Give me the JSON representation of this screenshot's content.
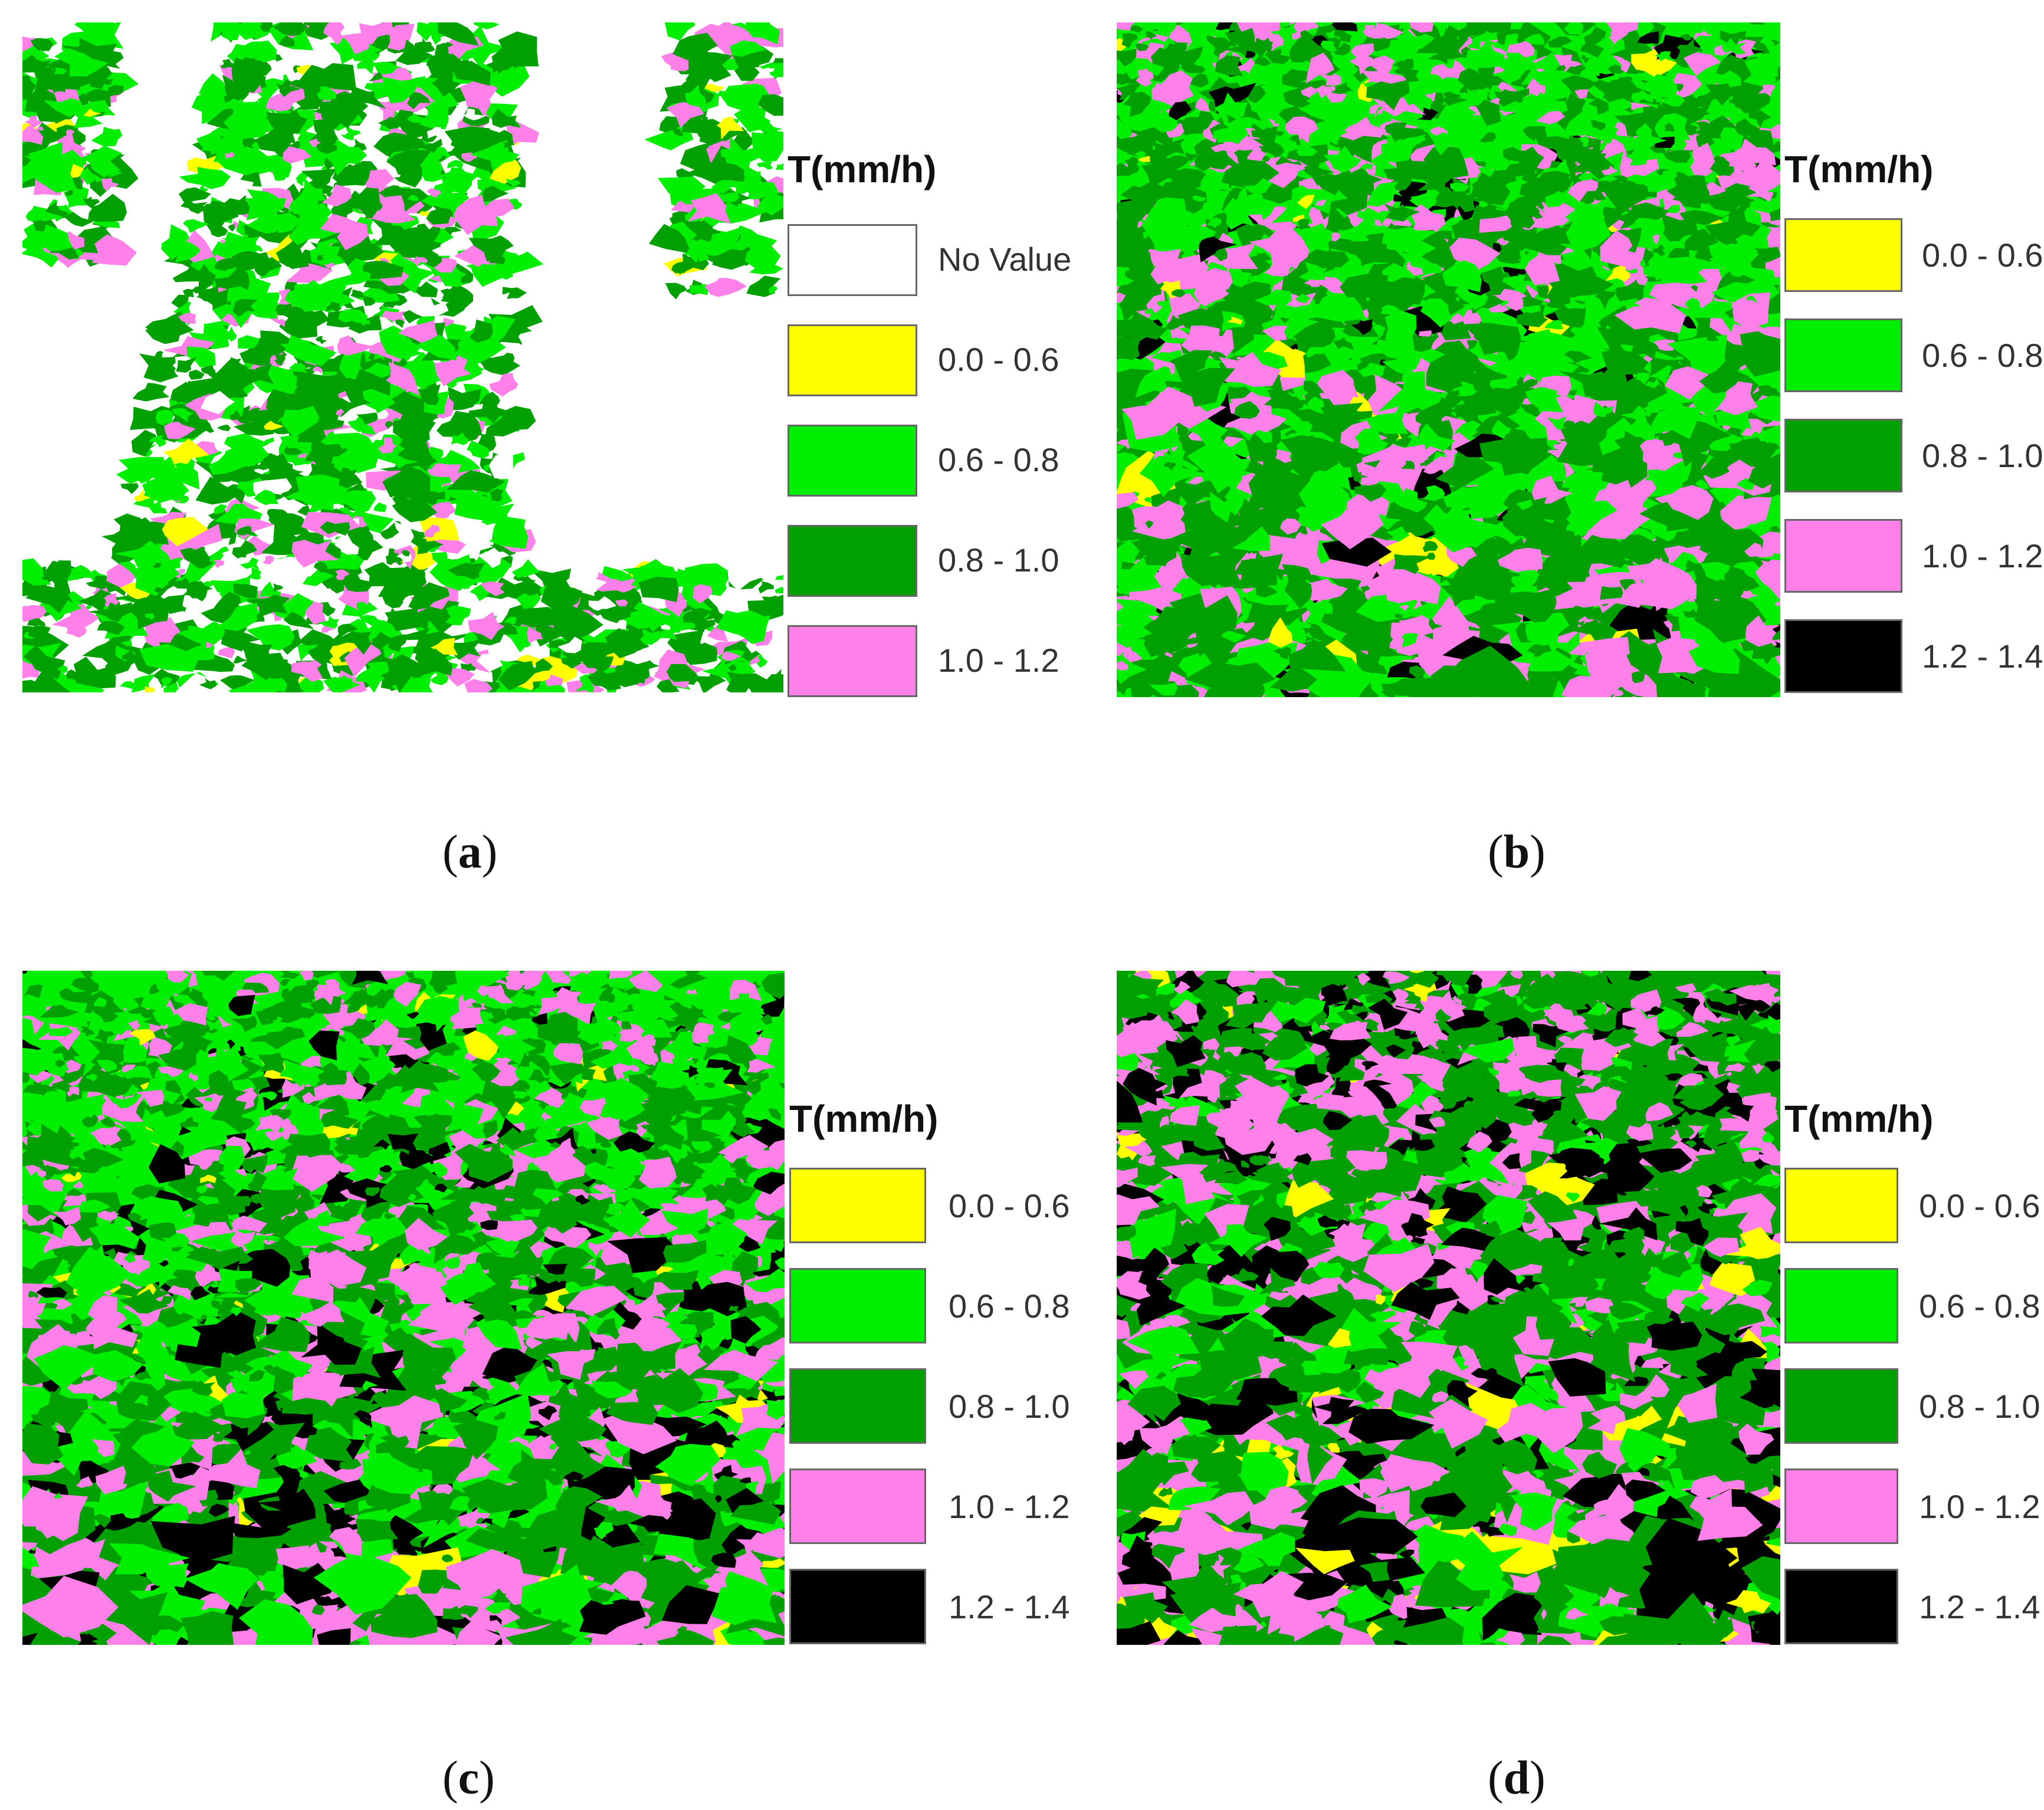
{
  "figure": {
    "legend_title": "T(mm/h)",
    "class_colors": {
      "no_value": "#ffffff",
      "0.0 - 0.6": "#ffff00",
      "0.6 - 0.8": "#00ee00",
      "0.8 - 1.0": "#00a000",
      "1.0 - 1.2": "#ff80e8",
      "1.2 - 1.4": "#000000"
    },
    "panels": [
      {
        "id": "a",
        "caption_letter": "a",
        "legend": [
          {
            "label": "No Value",
            "color": "#ffffff"
          },
          {
            "label": "0.0 - 0.6",
            "color": "#ffff00"
          },
          {
            "label": "0.6 - 0.8",
            "color": "#00ee00"
          },
          {
            "label": "0.8 - 1.0",
            "color": "#00a000"
          },
          {
            "label": "1.0 - 1.2",
            "color": "#ff80e8"
          }
        ]
      },
      {
        "id": "b",
        "caption_letter": "b",
        "legend": [
          {
            "label": "0.0 - 0.6",
            "color": "#ffff00"
          },
          {
            "label": "0.6 - 0.8",
            "color": "#00ee00"
          },
          {
            "label": "0.8 - 1.0",
            "color": "#00a000"
          },
          {
            "label": "1.0 - 1.2",
            "color": "#ff80e8"
          },
          {
            "label": "1.2 - 1.4",
            "color": "#000000"
          }
        ]
      },
      {
        "id": "c",
        "caption_letter": "c",
        "legend": [
          {
            "label": "0.0 - 0.6",
            "color": "#ffff00"
          },
          {
            "label": "0.6 - 0.8",
            "color": "#00ee00"
          },
          {
            "label": "0.8 - 1.0",
            "color": "#00a000"
          },
          {
            "label": "1.0 - 1.2",
            "color": "#ff80e8"
          },
          {
            "label": "1.2 - 1.4",
            "color": "#000000"
          }
        ]
      },
      {
        "id": "d",
        "caption_letter": "d",
        "legend": [
          {
            "label": "0.0 - 0.6",
            "color": "#ffff00"
          },
          {
            "label": "0.6 - 0.8",
            "color": "#00ee00"
          },
          {
            "label": "0.8 - 1.0",
            "color": "#00a000"
          },
          {
            "label": "1.0 - 1.2",
            "color": "#ff80e8"
          },
          {
            "label": "1.2 - 1.4",
            "color": "#000000"
          }
        ]
      }
    ]
  }
}
